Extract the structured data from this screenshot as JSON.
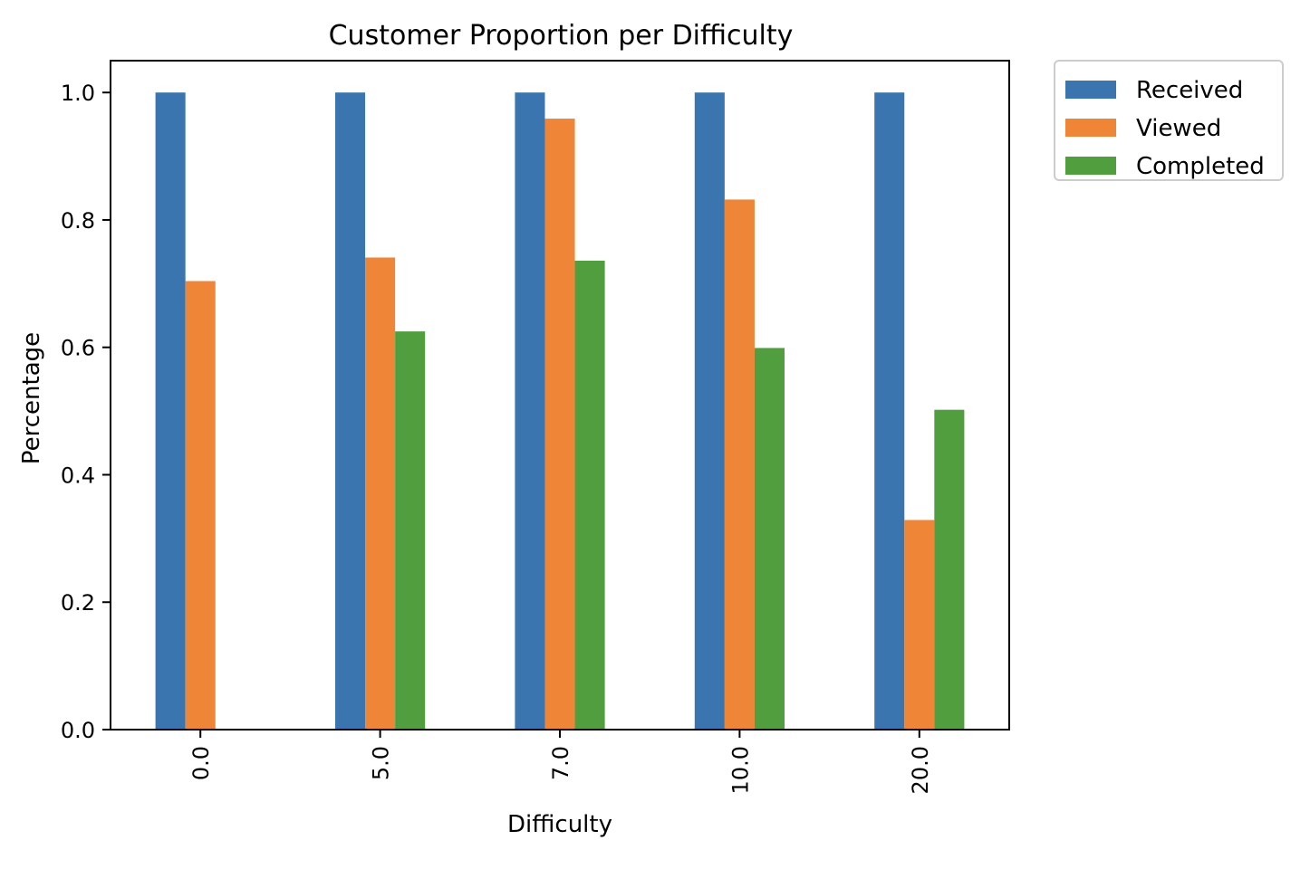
{
  "chart_data": {
    "type": "bar",
    "title": "Customer Proportion per Difficulty",
    "xlabel": "Difficulty",
    "ylabel": "Percentage",
    "categories": [
      "0.0",
      "5.0",
      "7.0",
      "10.0",
      "20.0"
    ],
    "series": [
      {
        "name": "Received",
        "color": "#3a75af",
        "values": [
          1.0,
          1.0,
          1.0,
          1.0,
          1.0
        ]
      },
      {
        "name": "Viewed",
        "color": "#ef8536",
        "values": [
          0.704,
          0.741,
          0.959,
          0.832,
          0.329
        ]
      },
      {
        "name": "Completed",
        "color": "#519e3e",
        "values": [
          0.0,
          0.625,
          0.736,
          0.599,
          0.502
        ]
      }
    ],
    "ylim": [
      0,
      1.05
    ],
    "yticks": [
      0.0,
      0.2,
      0.4,
      0.6,
      0.8,
      1.0
    ],
    "ytick_labels": [
      "0.0",
      "0.2",
      "0.4",
      "0.6",
      "0.8",
      "1.0"
    ],
    "xtick_rotation": "vertical",
    "grid": false,
    "legend_position": "outside-upper-right"
  }
}
